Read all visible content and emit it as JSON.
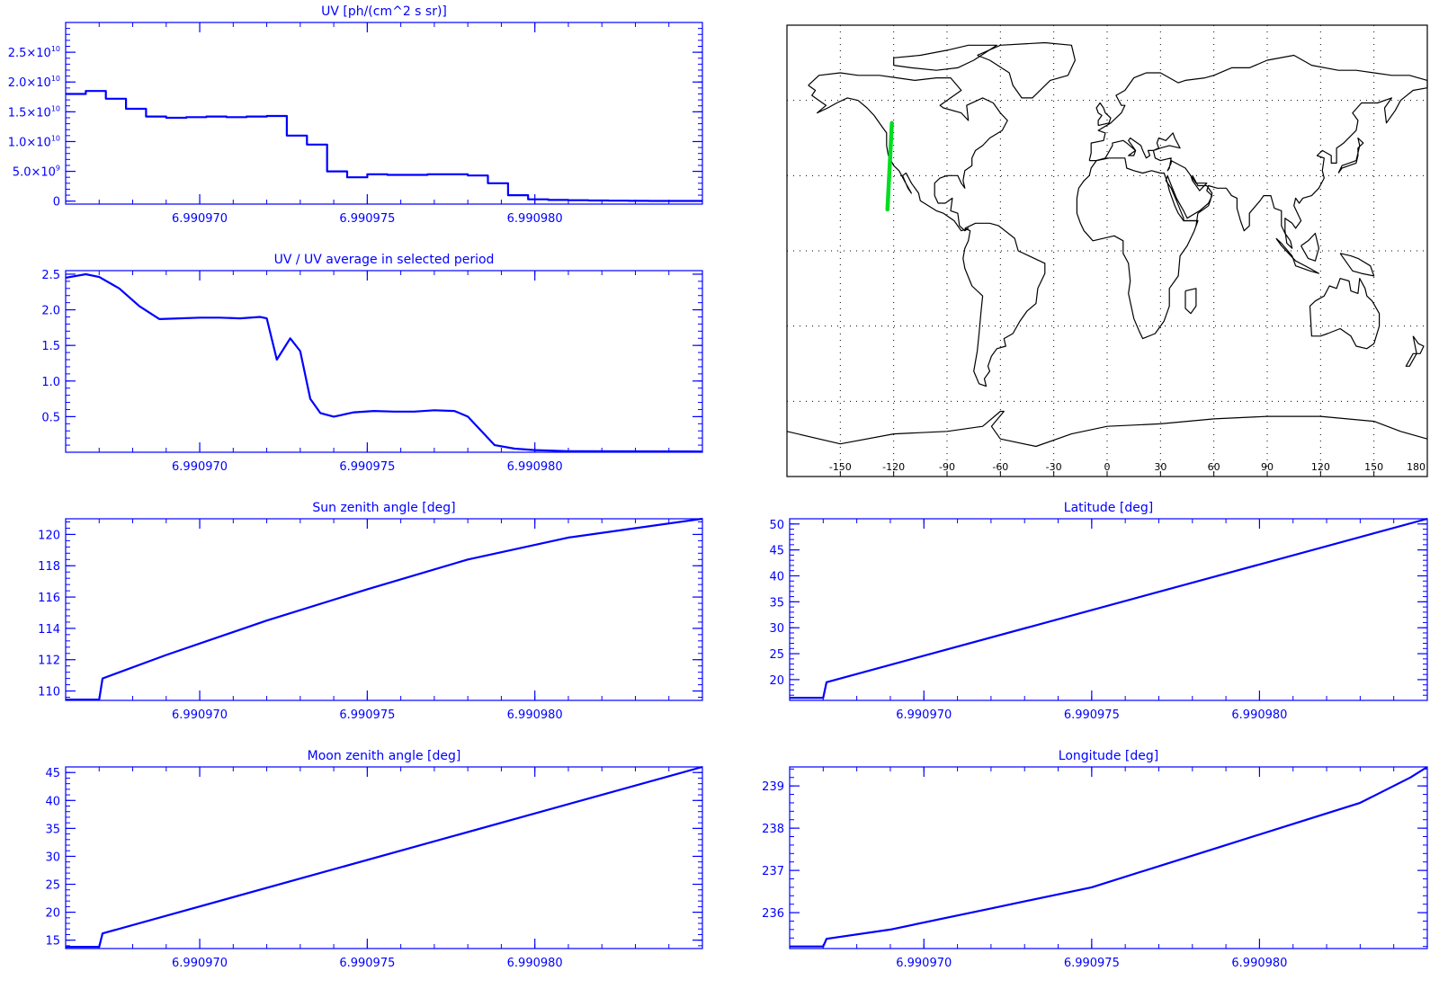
{
  "axis_color": "#0000FF",
  "trace_color": "#0000FF",
  "map_color": "#000000",
  "track_color": "#00DD22",
  "chart_data": [
    {
      "id": "uv",
      "type": "line",
      "title": "UV [ph/(cm^2 s sr)]",
      "xlim": [
        6.990966,
        6.990985
      ],
      "ylim": [
        -500000000.0,
        30000000000.0
      ],
      "xticks": [
        6.99097,
        6.990975,
        6.99098
      ],
      "xtick_labels": [
        "6.990970",
        "6.990975",
        "6.990980"
      ],
      "yticks": [
        0,
        5000000000.0,
        10000000000.0,
        15000000000.0,
        20000000000.0,
        25000000000.0
      ],
      "ytick_labels": [
        {
          "mant": "0",
          "exp": ""
        },
        {
          "mant": "5.0×10",
          "exp": "9"
        },
        {
          "mant": "1.0×10",
          "exp": "10"
        },
        {
          "mant": "1.5×10",
          "exp": "10"
        },
        {
          "mant": "2.0×10",
          "exp": "10"
        },
        {
          "mant": "2.5×10",
          "exp": "10"
        }
      ],
      "step": true,
      "x": [
        6.990966,
        6.9909666,
        6.9909672,
        6.9909678,
        6.9909684,
        6.990969,
        6.9909696,
        6.9909702,
        6.9909708,
        6.9909714,
        6.990972,
        6.9909726,
        6.9909732,
        6.9909738,
        6.9909744,
        6.990975,
        6.9909756,
        6.9909762,
        6.9909768,
        6.9909774,
        6.990978,
        6.9909786,
        6.9909792,
        6.9909798,
        6.9909804,
        6.990981,
        6.9909816,
        6.9909822,
        6.9909828,
        6.9909834,
        6.990985
      ],
      "y": [
        18000000000.0,
        18500000000.0,
        17200000000.0,
        15500000000.0,
        14200000000.0,
        14000000000.0,
        14100000000.0,
        14200000000.0,
        14100000000.0,
        14200000000.0,
        14300000000.0,
        11000000000.0,
        9500000000.0,
        5000000000.0,
        4000000000.0,
        4500000000.0,
        4400000000.0,
        4400000000.0,
        4500000000.0,
        4500000000.0,
        4300000000.0,
        3000000000.0,
        1000000000.0,
        300000000.0,
        200000000.0,
        150000000.0,
        100000000.0,
        80000000.0,
        50000000.0,
        30000000.0,
        20000000.0
      ]
    },
    {
      "id": "uvratio",
      "type": "line",
      "title": "UV / UV average in selected period",
      "xlim": [
        6.990966,
        6.990985
      ],
      "ylim": [
        0.0,
        2.55
      ],
      "xticks": [
        6.99097,
        6.990975,
        6.99098
      ],
      "xtick_labels": [
        "6.990970",
        "6.990975",
        "6.990980"
      ],
      "yticks": [
        0.5,
        1.0,
        1.5,
        2.0,
        2.5
      ],
      "ytick_labels": [
        "0.5",
        "1.0",
        "1.5",
        "2.0",
        "2.5"
      ],
      "x": [
        6.990966,
        6.9909666,
        6.990967,
        6.9909676,
        6.9909682,
        6.9909688,
        6.9909694,
        6.99097,
        6.9909706,
        6.9909712,
        6.9909718,
        6.990972,
        6.9909723,
        6.9909727,
        6.990973,
        6.9909733,
        6.9909736,
        6.990974,
        6.9909746,
        6.9909752,
        6.9909758,
        6.9909764,
        6.990977,
        6.9909776,
        6.990978,
        6.9909784,
        6.9909788,
        6.9909794,
        6.99098,
        6.990981,
        6.990985
      ],
      "y": [
        2.45,
        2.5,
        2.46,
        2.3,
        2.05,
        1.87,
        1.88,
        1.89,
        1.89,
        1.88,
        1.9,
        1.88,
        1.3,
        1.6,
        1.42,
        0.75,
        0.55,
        0.5,
        0.56,
        0.58,
        0.57,
        0.57,
        0.59,
        0.58,
        0.5,
        0.3,
        0.1,
        0.05,
        0.03,
        0.015,
        0.01
      ]
    },
    {
      "id": "sza",
      "type": "line",
      "title": "Sun zenith angle [deg]",
      "xlim": [
        6.990966,
        6.990985
      ],
      "ylim": [
        109.4,
        121.0
      ],
      "xticks": [
        6.99097,
        6.990975,
        6.99098
      ],
      "xtick_labels": [
        "6.990970",
        "6.990975",
        "6.990980"
      ],
      "yticks": [
        110,
        112,
        114,
        116,
        118,
        120
      ],
      "ytick_labels": [
        "110",
        "112",
        "114",
        "116",
        "118",
        "120"
      ],
      "x": [
        6.990966,
        6.990967,
        6.9909671,
        6.990969,
        6.990972,
        6.990975,
        6.990978,
        6.990981,
        6.990985
      ],
      "y": [
        109.45,
        109.45,
        110.8,
        112.3,
        114.5,
        116.5,
        118.4,
        119.8,
        121.0
      ]
    },
    {
      "id": "lat",
      "type": "line",
      "title": "Latitude [deg]",
      "xlim": [
        6.990966,
        6.990985
      ],
      "ylim": [
        16.0,
        51.0
      ],
      "xticks": [
        6.99097,
        6.990975,
        6.99098
      ],
      "xtick_labels": [
        "6.990970",
        "6.990975",
        "6.990980"
      ],
      "yticks": [
        20,
        25,
        30,
        35,
        40,
        45,
        50
      ],
      "ytick_labels": [
        "20",
        "25",
        "30",
        "35",
        "40",
        "45",
        "50"
      ],
      "x": [
        6.990966,
        6.990967,
        6.9909671,
        6.990985
      ],
      "y": [
        16.5,
        16.5,
        19.5,
        51.0
      ]
    },
    {
      "id": "mza",
      "type": "line",
      "title": "Moon zenith angle [deg]",
      "xlim": [
        6.990966,
        6.990985
      ],
      "ylim": [
        13.5,
        46.0
      ],
      "xticks": [
        6.99097,
        6.990975,
        6.99098
      ],
      "xtick_labels": [
        "6.990970",
        "6.990975",
        "6.990980"
      ],
      "yticks": [
        15,
        20,
        25,
        30,
        35,
        40,
        45
      ],
      "ytick_labels": [
        "15",
        "20",
        "25",
        "30",
        "35",
        "40",
        "45"
      ],
      "x": [
        6.990966,
        6.990967,
        6.9909671,
        6.990985
      ],
      "y": [
        13.8,
        13.8,
        16.2,
        46.0
      ]
    },
    {
      "id": "lon",
      "type": "line",
      "title": "Longitude [deg]",
      "xlim": [
        6.990966,
        6.990985
      ],
      "ylim": [
        235.15,
        239.45
      ],
      "xticks": [
        6.99097,
        6.990975,
        6.99098
      ],
      "xtick_labels": [
        "6.990970",
        "6.990975",
        "6.990980"
      ],
      "yticks": [
        236,
        237,
        238,
        239
      ],
      "ytick_labels": [
        "236",
        "237",
        "238",
        "239"
      ],
      "x": [
        6.990966,
        6.990967,
        6.9909671,
        6.990969,
        6.990972,
        6.990975,
        6.990977,
        6.990979,
        6.990981,
        6.990983,
        6.9909845,
        6.990985
      ],
      "y": [
        235.2,
        235.2,
        235.38,
        235.6,
        236.1,
        236.6,
        237.1,
        237.6,
        238.1,
        238.6,
        239.2,
        239.45
      ]
    }
  ],
  "map": {
    "type": "map",
    "lon_ticks": [
      -150,
      -120,
      -90,
      -60,
      -30,
      0,
      30,
      60,
      90,
      120,
      150,
      180
    ],
    "lon_tick_labels": [
      "-150",
      "-120",
      "-90",
      "-60",
      "-30",
      "0",
      "30",
      "60",
      "90",
      "120",
      "150",
      "180"
    ],
    "lat_grid": [
      -60,
      -30,
      0,
      30,
      60
    ],
    "lon_range": [
      -180,
      180
    ],
    "lat_range": [
      -90,
      90
    ],
    "track": {
      "lon": [
        -123.5,
        -121.0
      ],
      "lat": [
        16.5,
        51.0
      ]
    }
  }
}
